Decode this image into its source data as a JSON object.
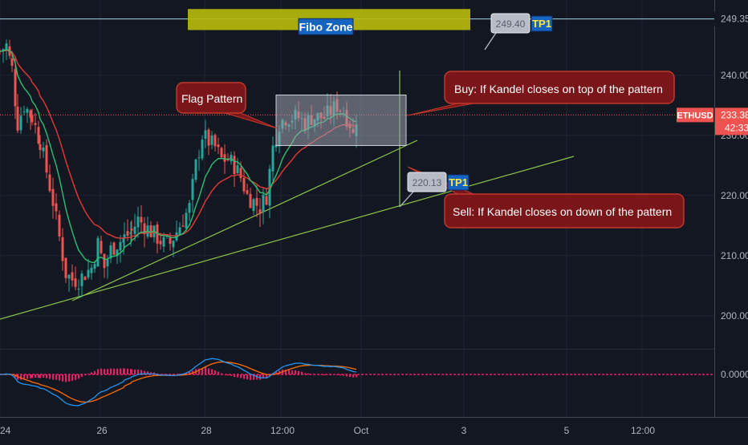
{
  "colors": {
    "background": "#131722",
    "grid": "#1f2433",
    "candle_up": "#26a69a",
    "candle_down": "#ef5350",
    "ma_fast": "#2fbf71",
    "ma_slow": "#e53935",
    "trendline": "#8bc34a",
    "tp_line": "#9fd8e8",
    "price_line": "#ef5350",
    "macd_line": "#2196f3",
    "signal_line": "#ff6d00",
    "histogram": "#e91e63",
    "fibo_fill": "#b5b90a",
    "callout_fill": "#7a1519",
    "callout_border": "#c0392b",
    "flag_box": "#9aa0ad"
  },
  "chart_data": {
    "type": "candlestick",
    "symbol": "ETHUSD",
    "last_price": "233.38",
    "countdown": "42:33",
    "y_axis": {
      "ticks": [
        "240.00",
        "230.00",
        "220.00",
        "210.00",
        "200.00"
      ],
      "range": [
        194.5,
        252.5
      ]
    },
    "x_axis": {
      "ticks": [
        "24",
        "26",
        "28",
        "12:00",
        "Oct",
        "3",
        "5",
        "12:00"
      ]
    },
    "horizontal_levels": [
      {
        "label": "249.35",
        "value": 249.35
      }
    ],
    "fibo_zone": {
      "label": "Fibo Zone",
      "price_from": 247.5,
      "price_to": 251.0
    },
    "flag_pattern": {
      "price_from": 228.3,
      "price_to": 236.7
    },
    "targets": [
      {
        "price_label": "249.40",
        "tag": "TP1",
        "value": 249.4
      },
      {
        "price_label": "220.13",
        "tag": "TP1",
        "value": 220.13
      }
    ],
    "callouts": [
      {
        "text": "Flag Pattern"
      },
      {
        "text": "Buy: If Kandel closes on top of the pattern"
      },
      {
        "text": "Sell: If Kandel closes on down of the pattern"
      }
    ],
    "indicator": {
      "type": "MACD",
      "zero_label": "0.0000"
    }
  }
}
